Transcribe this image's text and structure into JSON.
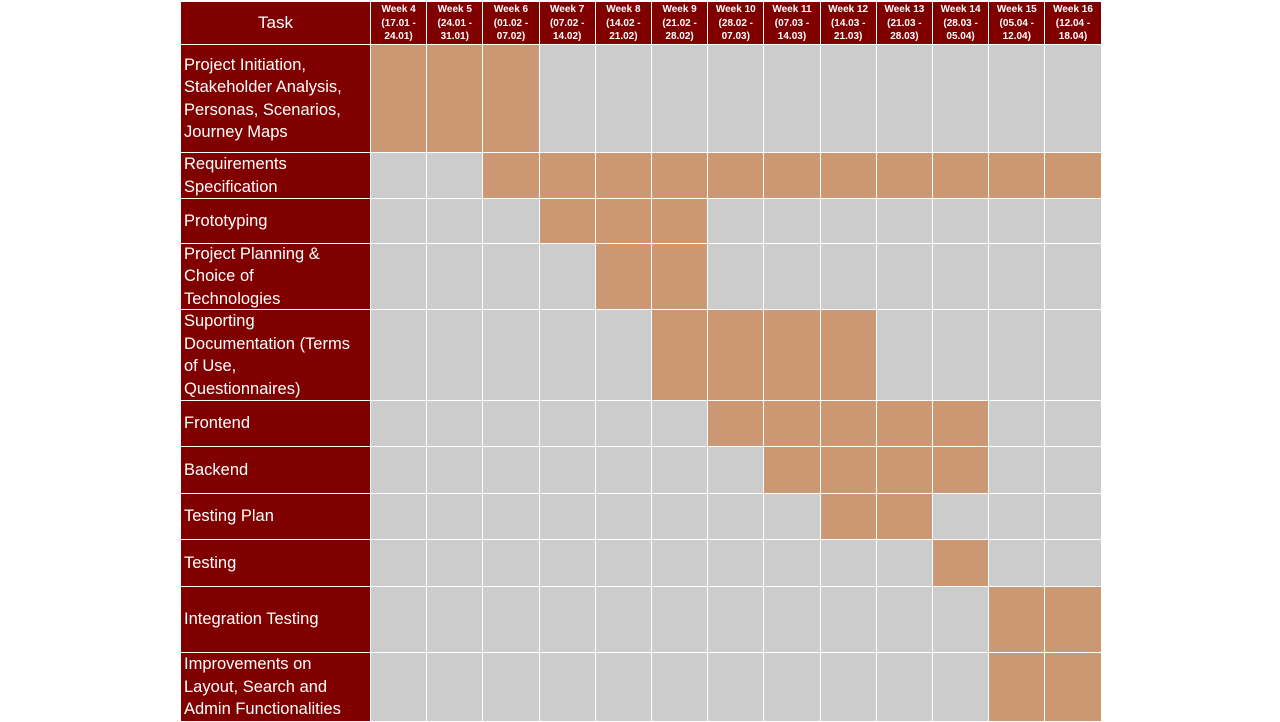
{
  "chart_data": {
    "type": "table",
    "title": "",
    "task_header": "Task",
    "weeks": [
      {
        "label": "Week 4",
        "range_line1": "(17.01 -",
        "range_line2": "24.01)"
      },
      {
        "label": "Week 5",
        "range_line1": "(24.01 -",
        "range_line2": "31.01)"
      },
      {
        "label": "Week 6",
        "range_line1": "(01.02 -",
        "range_line2": "07.02)"
      },
      {
        "label": "Week 7",
        "range_line1": "(07.02 -",
        "range_line2": "14.02)"
      },
      {
        "label": "Week 8",
        "range_line1": "(14.02 -",
        "range_line2": "21.02)"
      },
      {
        "label": "Week 9",
        "range_line1": "(21.02 -",
        "range_line2": "28.02)"
      },
      {
        "label": "Week 10",
        "range_line1": "(28.02 -",
        "range_line2": "07.03)"
      },
      {
        "label": "Week 11",
        "range_line1": "(07.03 -",
        "range_line2": "14.03)"
      },
      {
        "label": "Week 12",
        "range_line1": "(14.03 -",
        "range_line2": "21.03)"
      },
      {
        "label": "Week 13",
        "range_line1": "(21.03 -",
        "range_line2": "28.03)"
      },
      {
        "label": "Week 14",
        "range_line1": "(28.03 -",
        "range_line2": "05.04)"
      },
      {
        "label": "Week 15",
        "range_line1": "(05.04 -",
        "range_line2": "12.04)"
      },
      {
        "label": "Week 16",
        "range_line1": "(12.04 -",
        "range_line2": "18.04)"
      }
    ],
    "tasks": [
      {
        "lines": [
          "Project Initiation,",
          "Stakeholder Analysis,",
          "Personas, Scenarios,",
          "Journey Maps"
        ],
        "active_weeks": [
          "Week 4",
          "Week 5",
          "Week 6"
        ]
      },
      {
        "lines": [
          "Requirements",
          "Specification"
        ],
        "active_weeks": [
          "Week 6",
          "Week 7",
          "Week 8",
          "Week 9",
          "Week 10",
          "Week 11",
          "Week 12",
          "Week 13",
          "Week 14",
          "Week 15",
          "Week 16"
        ]
      },
      {
        "lines": [
          "Prototyping"
        ],
        "active_weeks": [
          "Week 7",
          "Week 8",
          "Week 9"
        ]
      },
      {
        "lines": [
          "Project Planning &",
          "Choice of",
          "Technologies"
        ],
        "active_weeks": [
          "Week 8",
          "Week 9"
        ]
      },
      {
        "lines": [
          "Suporting",
          "Documentation (Terms",
          "of Use,",
          "Questionnaires)"
        ],
        "active_weeks": [
          "Week 9",
          "Week 10",
          "Week 11",
          "Week 12"
        ]
      },
      {
        "lines": [
          "Frontend"
        ],
        "active_weeks": [
          "Week 10",
          "Week 11",
          "Week 12",
          "Week 13",
          "Week 14"
        ]
      },
      {
        "lines": [
          "Backend"
        ],
        "active_weeks": [
          "Week 11",
          "Week 12",
          "Week 13",
          "Week 14"
        ]
      },
      {
        "lines": [
          "Testing Plan"
        ],
        "active_weeks": [
          "Week 12",
          "Week 13"
        ]
      },
      {
        "lines": [
          "Testing"
        ],
        "active_weeks": [
          "Week 14"
        ]
      },
      {
        "lines": [
          "Integration Testing"
        ],
        "active_weeks": [
          "Week 15",
          "Week 16"
        ]
      },
      {
        "lines": [
          "Improvements on",
          "Layout, Search and",
          "Admin Functionalities"
        ],
        "active_weeks": [
          "Week 15",
          "Week 16"
        ]
      }
    ],
    "colors": {
      "header_background": "#800000",
      "active_cell": "#cc9874",
      "inactive_cell": "#cccccc",
      "grid_line": "#ffffff",
      "header_text": "#ffffff"
    }
  }
}
